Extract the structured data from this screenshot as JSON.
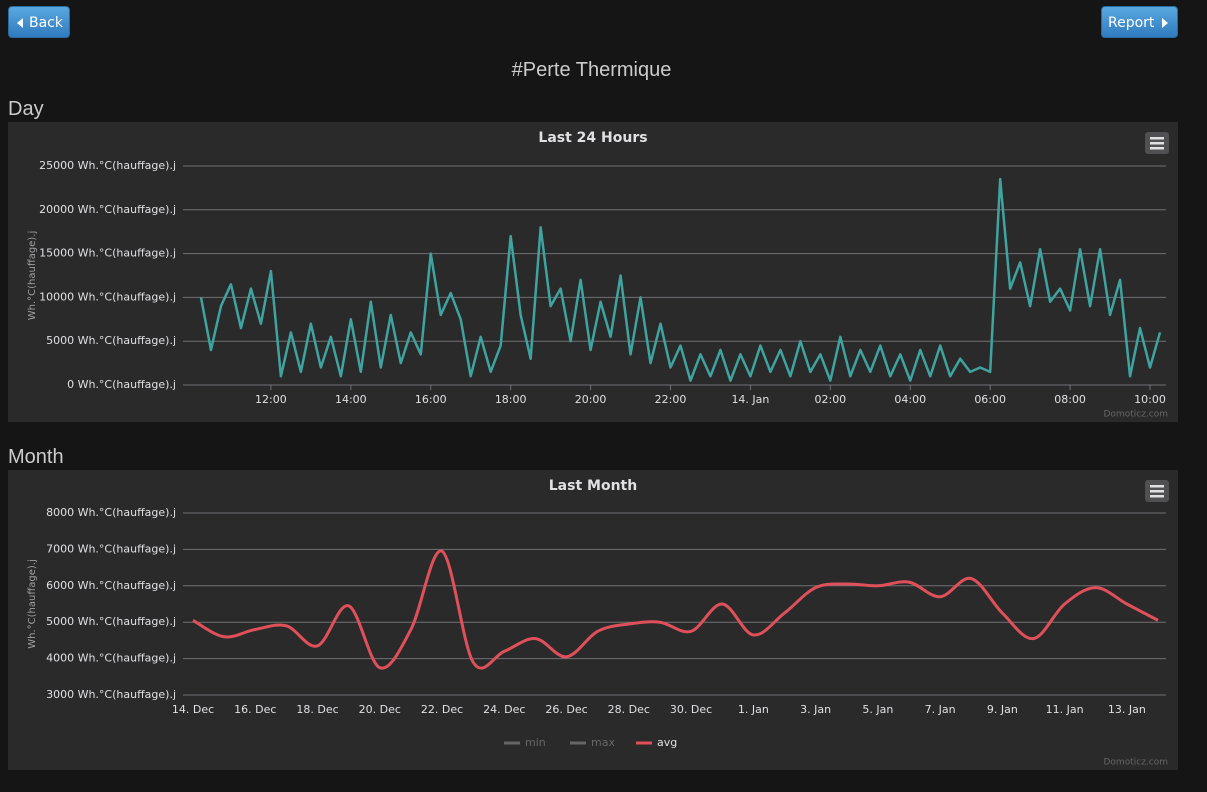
{
  "buttons": {
    "back": "Back",
    "report": "Report"
  },
  "page_title": "#Perte Thermique",
  "sections": [
    "Day",
    "Month"
  ],
  "chart_data": [
    {
      "type": "line",
      "title": "Last 24 Hours",
      "y_label": "Wh.°C(hauffage).j",
      "credits": "Domoticz.com",
      "grid": true,
      "smooth": false,
      "xlim": [
        9.8,
        34.4
      ],
      "xticks": [
        {
          "value": 12,
          "label": "12:00"
        },
        {
          "value": 14,
          "label": "14:00"
        },
        {
          "value": 16,
          "label": "16:00"
        },
        {
          "value": 18,
          "label": "18:00"
        },
        {
          "value": 20,
          "label": "20:00"
        },
        {
          "value": 22,
          "label": "22:00"
        },
        {
          "value": 24,
          "label": "14. Jan"
        },
        {
          "value": 26,
          "label": "02:00"
        },
        {
          "value": 28,
          "label": "04:00"
        },
        {
          "value": 30,
          "label": "06:00"
        },
        {
          "value": 32,
          "label": "08:00"
        },
        {
          "value": 34,
          "label": "10:00"
        }
      ],
      "ylim": [
        0,
        25000
      ],
      "yticks": [
        {
          "value": 0,
          "label": "0 Wh.°C(hauffage).j"
        },
        {
          "value": 5000,
          "label": "5000 Wh.°C(hauffage).j"
        },
        {
          "value": 10000,
          "label": "10000 Wh.°C(hauffage).j"
        },
        {
          "value": 15000,
          "label": "15000 Wh.°C(hauffage).j"
        },
        {
          "value": 20000,
          "label": "20000 Wh.°C(hauffage).j"
        },
        {
          "value": 25000,
          "label": "25000 Wh.°C(hauffage).j"
        }
      ],
      "x": [
        10.25,
        10.5,
        10.75,
        11,
        11.25,
        11.5,
        11.75,
        12,
        12.25,
        12.5,
        12.75,
        13,
        13.25,
        13.5,
        13.75,
        14,
        14.25,
        14.5,
        14.75,
        15,
        15.25,
        15.5,
        15.75,
        16,
        16.25,
        16.5,
        16.75,
        17,
        17.25,
        17.5,
        17.75,
        18,
        18.25,
        18.5,
        18.75,
        19,
        19.25,
        19.5,
        19.75,
        20,
        20.25,
        20.5,
        20.75,
        21,
        21.25,
        21.5,
        21.75,
        22,
        22.25,
        22.5,
        22.75,
        23,
        23.25,
        23.5,
        23.75,
        24,
        24.25,
        24.5,
        24.75,
        25,
        25.25,
        25.5,
        25.75,
        26,
        26.25,
        26.5,
        26.75,
        27,
        27.25,
        27.5,
        27.75,
        28,
        28.25,
        28.5,
        28.75,
        29,
        29.25,
        29.5,
        29.75,
        30,
        30.25,
        30.5,
        30.75,
        31,
        31.25,
        31.5,
        31.75,
        32,
        32.25,
        32.5,
        32.75,
        33,
        33.25,
        33.5,
        33.75,
        34,
        34.25
      ],
      "series": [
        {
          "name": "Wh.°C(hauffage).j",
          "color": "#3fa3a0",
          "values": [
            10000,
            4000,
            9000,
            11500,
            6500,
            11000,
            7000,
            13000,
            1000,
            6000,
            1500,
            7000,
            2000,
            5500,
            1000,
            7500,
            1500,
            9500,
            2000,
            8000,
            2500,
            6000,
            3500,
            15000,
            8000,
            10500,
            7500,
            1000,
            5500,
            1500,
            4500,
            17000,
            8000,
            3000,
            18000,
            9000,
            11000,
            5000,
            12000,
            4000,
            9500,
            5500,
            12500,
            3500,
            10000,
            2500,
            7000,
            2000,
            4500,
            500,
            3500,
            1000,
            4000,
            500,
            3500,
            1000,
            4500,
            1500,
            4000,
            1000,
            5000,
            1500,
            3500,
            500,
            5500,
            1000,
            4000,
            1500,
            4500,
            1000,
            3500,
            500,
            4000,
            1000,
            4500,
            1000,
            3000,
            1500,
            2000,
            1500,
            23500,
            11000,
            14000,
            9000,
            15500,
            9500,
            11000,
            8500,
            15500,
            9000,
            15500,
            8000,
            12000,
            1000,
            6500,
            2000,
            6000
          ]
        }
      ]
    },
    {
      "type": "line",
      "title": "Last Month",
      "y_label": "Wh.°C(hauffage).j",
      "credits": "Domoticz.com",
      "grid": true,
      "smooth": true,
      "ylim": [
        3000,
        8000
      ],
      "yticks": [
        {
          "value": 3000,
          "label": "3000 Wh.°C(hauffage).j"
        },
        {
          "value": 4000,
          "label": "4000 Wh.°C(hauffage).j"
        },
        {
          "value": 5000,
          "label": "5000 Wh.°C(hauffage).j"
        },
        {
          "value": 6000,
          "label": "6000 Wh.°C(hauffage).j"
        },
        {
          "value": 7000,
          "label": "7000 Wh.°C(hauffage).j"
        },
        {
          "value": 8000,
          "label": "8000 Wh.°C(hauffage).j"
        }
      ],
      "categories": [
        "14. Dec",
        null,
        "16. Dec",
        null,
        "18. Dec",
        null,
        "20. Dec",
        null,
        "22. Dec",
        null,
        "24. Dec",
        null,
        "26. Dec",
        null,
        "28. Dec",
        null,
        "30. Dec",
        null,
        "1. Jan",
        null,
        "3. Jan",
        null,
        "5. Jan",
        null,
        "7. Jan",
        null,
        "9. Jan",
        null,
        "11. Jan",
        null,
        "13. Jan",
        null
      ],
      "series": [
        {
          "name": "min",
          "color": "#666666",
          "visible": false,
          "values": [
            null,
            null,
            null,
            null,
            null,
            null,
            null,
            null,
            null,
            null,
            null,
            null,
            null,
            null,
            null,
            null,
            null,
            null,
            null,
            null,
            null,
            null,
            null,
            null,
            null,
            null,
            null,
            null,
            null,
            null,
            null,
            null
          ]
        },
        {
          "name": "max",
          "color": "#666666",
          "visible": false,
          "values": [
            null,
            null,
            null,
            null,
            null,
            null,
            null,
            null,
            null,
            null,
            null,
            null,
            null,
            null,
            null,
            null,
            null,
            null,
            null,
            null,
            null,
            null,
            null,
            null,
            null,
            null,
            null,
            null,
            null,
            null,
            null,
            null
          ]
        },
        {
          "name": "avg",
          "color": "#e0505a",
          "visible": true,
          "values": [
            5050,
            4600,
            4800,
            4900,
            4350,
            5450,
            3750,
            4800,
            6950,
            3900,
            4200,
            4550,
            4050,
            4750,
            4950,
            5000,
            4750,
            5500,
            4650,
            5250,
            5950,
            6050,
            6000,
            6100,
            5700,
            6200,
            5250,
            4550,
            5500,
            5950,
            5500,
            5050
          ]
        }
      ]
    }
  ]
}
